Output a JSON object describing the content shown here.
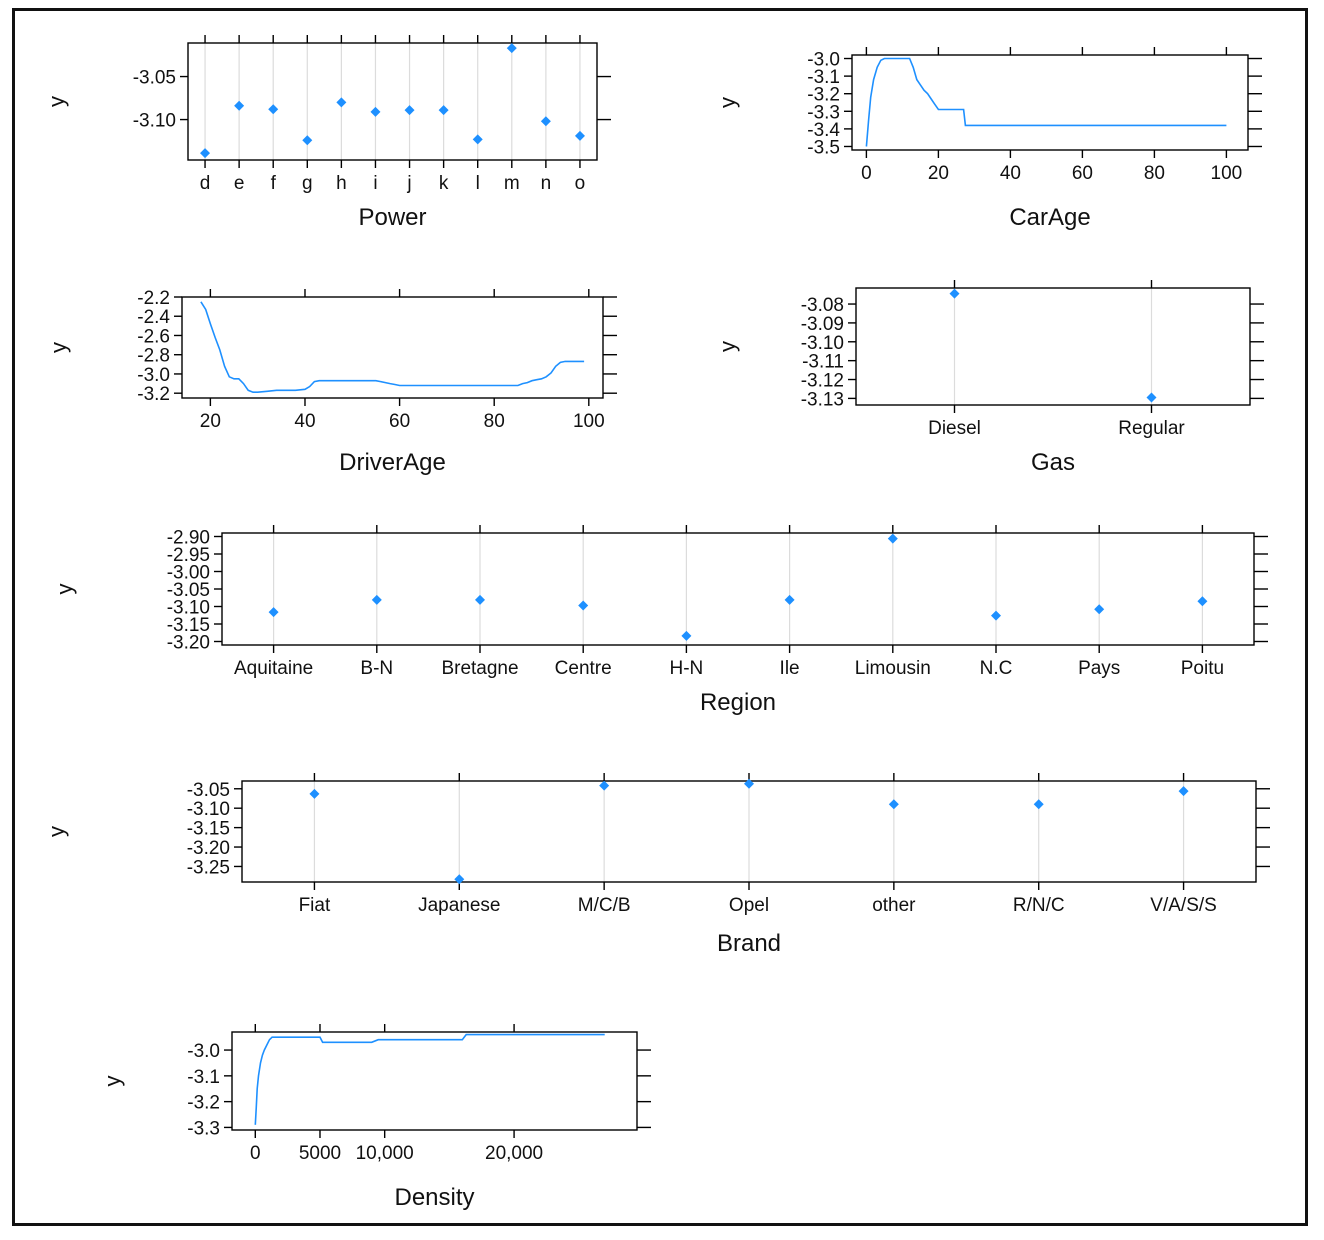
{
  "colors": {
    "series": "#1e90ff",
    "grid": "#dcdcdc",
    "axis": "#000000"
  },
  "chart_data": [
    {
      "id": "power",
      "type": "scatter",
      "title": "",
      "xlabel": "Power",
      "ylabel": "y",
      "categories": [
        "d",
        "e",
        "f",
        "g",
        "h",
        "i",
        "j",
        "k",
        "l",
        "m",
        "n",
        "o"
      ],
      "values": [
        -3.139,
        -3.084,
        -3.088,
        -3.124,
        -3.08,
        -3.091,
        -3.089,
        -3.089,
        -3.123,
        -3.017,
        -3.102,
        -3.119
      ],
      "ylim": [
        -3.147,
        -3.011
      ],
      "yticks": [
        -3.05,
        -3.1
      ],
      "ytick_labels": [
        "-3.05",
        "-3.10"
      ],
      "grid": true
    },
    {
      "id": "carage",
      "type": "line",
      "title": "",
      "xlabel": "CarAge",
      "ylabel": "y",
      "x": [
        0,
        0.6,
        1.2,
        2,
        3,
        4,
        5,
        6,
        8,
        10,
        12,
        13,
        14,
        15,
        16,
        17,
        18,
        19,
        20,
        22,
        24,
        26,
        27,
        27.5,
        30,
        40,
        60,
        80,
        100
      ],
      "y": [
        -3.5,
        -3.35,
        -3.22,
        -3.12,
        -3.05,
        -3.01,
        -3.0,
        -3.0,
        -3.0,
        -3.0,
        -3.0,
        -3.05,
        -3.12,
        -3.15,
        -3.18,
        -3.2,
        -3.23,
        -3.26,
        -3.29,
        -3.29,
        -3.29,
        -3.29,
        -3.29,
        -3.38,
        -3.38,
        -3.38,
        -3.38,
        -3.38,
        -3.38
      ],
      "xlim": [
        -4,
        106
      ],
      "ylim": [
        -3.52,
        -2.98
      ],
      "xticks": [
        0,
        20,
        40,
        60,
        80,
        100
      ],
      "xtick_labels": [
        "0",
        "20",
        "40",
        "60",
        "80",
        "100"
      ],
      "yticks": [
        -3.0,
        -3.1,
        -3.2,
        -3.3,
        -3.4,
        -3.5
      ],
      "ytick_labels": [
        "-3.0",
        "-3.1",
        "-3.2",
        "-3.3",
        "-3.4",
        "-3.5"
      ],
      "grid": false
    },
    {
      "id": "driverage",
      "type": "line",
      "title": "",
      "xlabel": "DriverAge",
      "ylabel": "y",
      "x": [
        18,
        19,
        20,
        21,
        22,
        23,
        24,
        25,
        26,
        27,
        28,
        29,
        30,
        32,
        34,
        36,
        38,
        40,
        41,
        42,
        43,
        45,
        50,
        55,
        56,
        57,
        58,
        59,
        60,
        70,
        80,
        85,
        86,
        87,
        88,
        89,
        90,
        91,
        92,
        93,
        94,
        95,
        99
      ],
      "y": [
        -2.25,
        -2.33,
        -2.48,
        -2.62,
        -2.75,
        -2.92,
        -3.03,
        -3.05,
        -3.05,
        -3.1,
        -3.17,
        -3.19,
        -3.19,
        -3.18,
        -3.17,
        -3.17,
        -3.17,
        -3.16,
        -3.13,
        -3.08,
        -3.07,
        -3.07,
        -3.07,
        -3.07,
        -3.08,
        -3.09,
        -3.1,
        -3.11,
        -3.12,
        -3.12,
        -3.12,
        -3.12,
        -3.1,
        -3.09,
        -3.07,
        -3.06,
        -3.05,
        -3.03,
        -2.99,
        -2.92,
        -2.88,
        -2.87,
        -2.87
      ],
      "xlim": [
        14,
        103
      ],
      "ylim": [
        -3.25,
        -2.2
      ],
      "xticks": [
        20,
        40,
        60,
        80,
        100
      ],
      "xtick_labels": [
        "20",
        "40",
        "60",
        "80",
        "100"
      ],
      "yticks": [
        -2.2,
        -2.4,
        -2.6,
        -2.8,
        -3.0,
        -3.2
      ],
      "ytick_labels": [
        "-2.2",
        "-2.4",
        "-2.6",
        "-2.8",
        "-3.0",
        "-3.2"
      ],
      "grid": false
    },
    {
      "id": "gas",
      "type": "scatter",
      "title": "",
      "xlabel": "Gas",
      "ylabel": "y",
      "categories": [
        "Diesel",
        "Regular"
      ],
      "values": [
        -3.0745,
        -3.1295
      ],
      "ylim": [
        -3.1335,
        -3.0715
      ],
      "yticks": [
        -3.08,
        -3.09,
        -3.1,
        -3.11,
        -3.12,
        -3.13
      ],
      "ytick_labels": [
        "-3.08",
        "-3.09",
        "-3.10",
        "-3.11",
        "-3.12",
        "-3.13"
      ],
      "grid": true
    },
    {
      "id": "region",
      "type": "scatter",
      "title": "",
      "xlabel": "Region",
      "ylabel": "y",
      "categories": [
        "Aquitaine",
        "B-N",
        "Bretagne",
        "Centre",
        "H-N",
        "Ile",
        "Limousin",
        "N.C",
        "Pays",
        "Poitu"
      ],
      "values": [
        -3.116,
        -3.081,
        -3.081,
        -3.097,
        -3.184,
        -3.081,
        -2.906,
        -3.126,
        -3.108,
        -3.085
      ],
      "ylim": [
        -3.21,
        -2.89
      ],
      "yticks": [
        -2.9,
        -2.95,
        -3.0,
        -3.05,
        -3.1,
        -3.15,
        -3.2
      ],
      "ytick_labels": [
        "-2.90",
        "-2.95",
        "-3.00",
        "-3.05",
        "-3.10",
        "-3.15",
        "-3.20"
      ],
      "grid": true
    },
    {
      "id": "brand",
      "type": "scatter",
      "title": "",
      "xlabel": "Brand",
      "ylabel": "y",
      "categories": [
        "Fiat",
        "Japanese",
        "M/C/B",
        "Opel",
        "other",
        "R/N/C",
        "V/A/S/S"
      ],
      "values": [
        -3.063,
        -3.283,
        -3.042,
        -3.037,
        -3.09,
        -3.09,
        -3.056
      ],
      "ylim": [
        -3.29,
        -3.03
      ],
      "yticks": [
        -3.05,
        -3.1,
        -3.15,
        -3.2,
        -3.25
      ],
      "ytick_labels": [
        "-3.05",
        "-3.10",
        "-3.15",
        "-3.20",
        "-3.25"
      ],
      "grid": true
    },
    {
      "id": "density",
      "type": "line",
      "title": "",
      "xlabel": "Density",
      "ylabel": "y",
      "x": [
        0,
        80,
        150,
        250,
        400,
        550,
        700,
        900,
        1100,
        1300,
        5000,
        5200,
        9000,
        9500,
        16000,
        16300,
        16600,
        27000
      ],
      "y": [
        -3.29,
        -3.22,
        -3.15,
        -3.1,
        -3.05,
        -3.02,
        -3.0,
        -2.98,
        -2.96,
        -2.95,
        -2.95,
        -2.97,
        -2.97,
        -2.96,
        -2.96,
        -2.94,
        -2.94,
        -2.94
      ],
      "xlim": [
        -1800,
        29500
      ],
      "ylim": [
        -3.31,
        -2.93
      ],
      "xticks": [
        0,
        5000,
        10000,
        20000
      ],
      "xtick_labels": [
        "0",
        "5000",
        "10,000",
        "20,000"
      ],
      "yticks": [
        -3.0,
        -3.1,
        -3.2,
        -3.3
      ],
      "ytick_labels": [
        "-3.0",
        "-3.1",
        "-3.2",
        "-3.3"
      ],
      "grid": false
    }
  ]
}
